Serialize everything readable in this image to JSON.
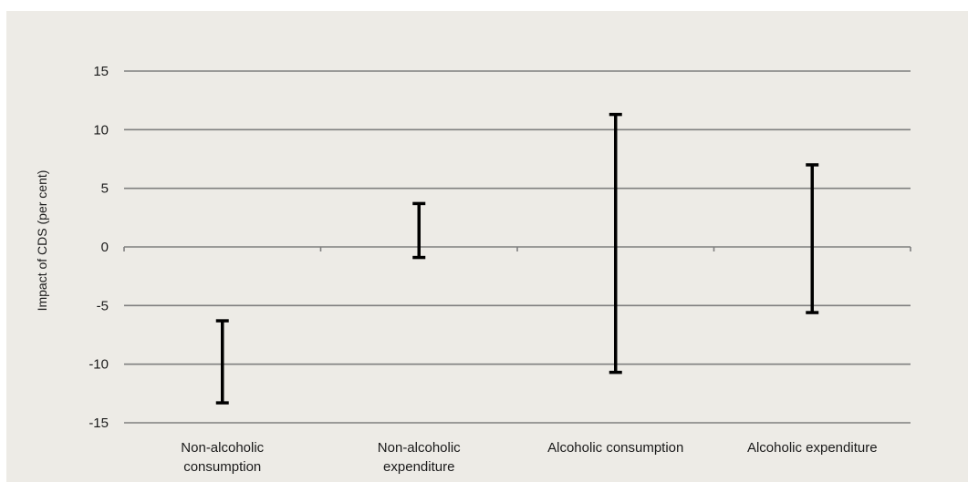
{
  "chart_data": {
    "type": "error-bar range",
    "title": "",
    "ylabel": "Impact of CDS (per cent)",
    "xlabel": "",
    "ylim": [
      -15,
      15
    ],
    "yticks": [
      15,
      10,
      5,
      0,
      -5,
      -10,
      -15
    ],
    "ytick_labels": [
      "15",
      "10",
      "5",
      "0",
      "-5",
      "-10",
      "-15"
    ],
    "grid": true,
    "categories": [
      [
        "Non-alcoholic",
        "consumption"
      ],
      [
        "Non-alcoholic",
        "expenditure"
      ],
      [
        "Alcoholic consumption"
      ],
      [
        "Alcoholic expenditure"
      ]
    ],
    "ranges": [
      {
        "low": -13.3,
        "high": -6.3
      },
      {
        "low": -0.9,
        "high": 3.7
      },
      {
        "low": -10.7,
        "high": 11.3
      },
      {
        "low": -5.6,
        "high": 7.0
      }
    ],
    "colors": {
      "background": "#edebe6",
      "gridline": "#7f7f7f",
      "bar": "#000000",
      "text": "#1a1a1a"
    }
  }
}
